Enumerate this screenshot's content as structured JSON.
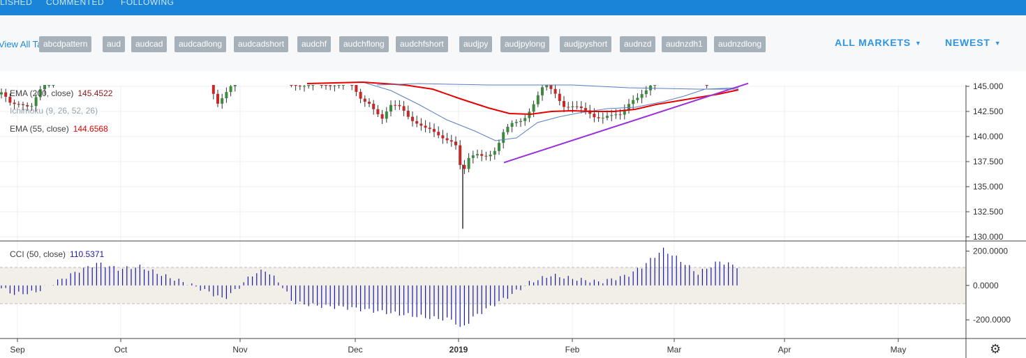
{
  "header": {
    "tabs": [
      "LISHED",
      "COMMENTED",
      "FOLLOWING"
    ]
  },
  "tags": {
    "view_all": "View All Tags",
    "items": [
      "abcdpattern",
      "aud",
      "audcad",
      "audcadlong",
      "audcadshort",
      "audchf",
      "audchflong",
      "audchfshort",
      "audjpy",
      "audjpylong",
      "audjpyshort",
      "audnzd",
      "audnzdh1",
      "audnzdlong"
    ]
  },
  "filters": {
    "markets": "ALL MARKETS",
    "sort": "NEWEST"
  },
  "colors": {
    "up": "#3b8a3e",
    "down": "#c62828",
    "ema55": "#e60000",
    "ema_fast": "#5a7fc0",
    "trendline": "#9b30d9",
    "cci": "#1a1aa8",
    "band": "#f2efe9"
  },
  "legend": {
    "ema1_name": "EMA (200, close)",
    "ema1_value": "145.4522",
    "ichimoku_name": "Ichimoku (9, 26, 52, 26)",
    "ema2_name": "EMA (55, close)",
    "ema2_value": "144.6568",
    "cci_name": "CCI (50, close)",
    "cci_value": "110.5371"
  },
  "chart_data": [
    {
      "type": "candlestick",
      "title": "",
      "y_ticks": [
        "145.000",
        "142.500",
        "140.000",
        "137.500",
        "135.000",
        "132.500",
        "130.000"
      ],
      "ylim": [
        130.0,
        145.0
      ],
      "x_ticks": [
        "Sep",
        "Oct",
        "Nov",
        "Dec",
        "2019",
        "Feb",
        "Mar",
        "Apr",
        "May"
      ],
      "series": [
        {
          "name": "EMA (200, close)",
          "last_value": 145.4522
        },
        {
          "name": "EMA (55, close)",
          "last_value": 144.6568
        }
      ],
      "annotations": [
        {
          "type": "trendline",
          "from": [
            "2019-01-14",
            137.4
          ],
          "to": [
            "2019-03-19",
            145.3
          ]
        }
      ],
      "key_points": {
        "low": 130.8,
        "low_date": "2019-01-03"
      }
    },
    {
      "type": "bar",
      "title": "CCI (50, close)",
      "y_ticks": [
        "200.0000",
        "0.0000",
        "-200.0000"
      ],
      "ylim": [
        -260,
        210
      ],
      "band": [
        -100,
        100
      ],
      "last_value": 110.5371
    }
  ]
}
